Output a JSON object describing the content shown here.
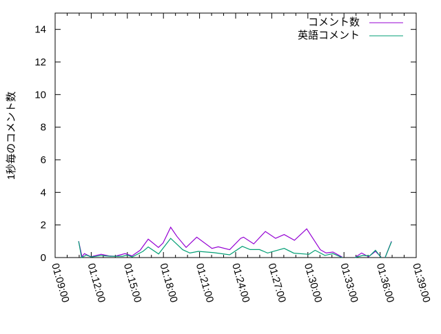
{
  "chart_data": {
    "type": "line",
    "title": "",
    "xlabel": "",
    "ylabel": "1秒毎のコメント数",
    "xlim": [
      "01:09:00",
      "01:39:00"
    ],
    "ylim": [
      0,
      15
    ],
    "x_ticks": [
      "01:09:00",
      "01:12:00",
      "01:15:00",
      "01:18:00",
      "01:21:00",
      "01:24:00",
      "01:27:00",
      "01:30:00",
      "01:33:00",
      "01:36:00",
      "01:39:00"
    ],
    "y_ticks": [
      0,
      2,
      4,
      6,
      8,
      10,
      12,
      14
    ],
    "grid": false,
    "legend_position": "top-right",
    "series": [
      {
        "name": "コメント数",
        "color": "#9400d3",
        "points": [
          [
            "01:10:57",
            1.0
          ],
          [
            "01:11:14",
            0.05
          ],
          [
            "01:11:26",
            0.24
          ],
          [
            "01:11:58",
            0.05
          ],
          [
            "01:12:49",
            0.2
          ],
          [
            "01:13:28",
            0.1
          ],
          [
            "01:13:58",
            0.08
          ],
          [
            "01:14:49",
            0.24
          ],
          [
            "01:15:23",
            0.1
          ],
          [
            "01:16:04",
            0.45
          ],
          [
            "01:16:44",
            1.13
          ],
          [
            "01:17:35",
            0.62
          ],
          [
            "01:17:58",
            0.89
          ],
          [
            "01:18:36",
            1.86
          ],
          [
            "01:19:07",
            1.3
          ],
          [
            "01:19:53",
            0.62
          ],
          [
            "01:20:46",
            1.25
          ],
          [
            "01:22:02",
            0.56
          ],
          [
            "01:22:33",
            0.66
          ],
          [
            "01:23:30",
            0.48
          ],
          [
            "01:24:25",
            1.18
          ],
          [
            "01:24:39",
            1.25
          ],
          [
            "01:25:30",
            0.84
          ],
          [
            "01:26:28",
            1.6
          ],
          [
            "01:27:19",
            1.18
          ],
          [
            "01:28:02",
            1.41
          ],
          [
            "01:28:53",
            1.06
          ],
          [
            "01:29:54",
            1.76
          ],
          [
            "01:31:02",
            0.48
          ],
          [
            "01:31:31",
            0.28
          ],
          [
            "01:32:05",
            0.34
          ],
          [
            "01:32:51",
            0.03
          ],
          null,
          [
            "01:33:54",
            0
          ],
          [
            "01:34:28",
            0.28
          ],
          [
            "01:35:02",
            0.05
          ],
          [
            "01:35:37",
            0.38
          ],
          [
            "01:36:05",
            0.03
          ],
          null,
          [
            "01:36:25",
            0
          ],
          [
            "01:36:57",
            1.0
          ]
        ]
      },
      {
        "name": "英語コメント",
        "color": "#009e73",
        "points": [
          [
            "01:10:57",
            1.0
          ],
          [
            "01:11:12",
            0
          ],
          [
            "01:11:36",
            0.15
          ],
          [
            "01:12:00",
            0.04
          ],
          [
            "01:12:48",
            0.12
          ],
          [
            "01:13:36",
            0.08
          ],
          [
            "01:14:36",
            0.08
          ],
          [
            "01:15:00",
            0.15
          ],
          [
            "01:15:24",
            0.04
          ],
          [
            "01:16:18",
            0.38
          ],
          [
            "01:16:44",
            0.65
          ],
          [
            "01:17:36",
            0.22
          ],
          [
            "01:18:36",
            1.18
          ],
          [
            "01:19:36",
            0.48
          ],
          [
            "01:20:12",
            0.28
          ],
          [
            "01:20:54",
            0.38
          ],
          [
            "01:22:12",
            0.3
          ],
          [
            "01:23:30",
            0.17
          ],
          [
            "01:24:33",
            0.69
          ],
          [
            "01:25:12",
            0.49
          ],
          [
            "01:25:59",
            0.49
          ],
          [
            "01:26:39",
            0.28
          ],
          [
            "01:28:02",
            0.56
          ],
          [
            "01:28:50",
            0.27
          ],
          [
            "01:30:05",
            0.2
          ],
          [
            "01:30:36",
            0.45
          ],
          [
            "01:31:25",
            0.13
          ],
          [
            "01:32:05",
            0.24
          ],
          [
            "01:32:51",
            0
          ],
          null,
          [
            "01:33:54",
            0
          ],
          [
            "01:34:34",
            0.13
          ],
          [
            "01:35:08",
            0.1
          ],
          [
            "01:35:37",
            0.45
          ],
          [
            "01:36:05",
            0
          ],
          null,
          [
            "01:36:25",
            0
          ],
          [
            "01:36:57",
            0.97
          ]
        ]
      }
    ]
  }
}
